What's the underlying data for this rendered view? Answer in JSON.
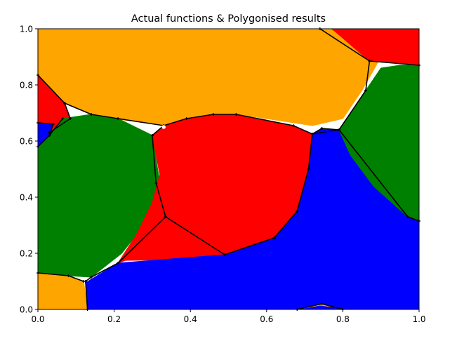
{
  "chart_data": {
    "type": "scatter",
    "title": "Actual functions & Polygonised results",
    "xlabel": "",
    "ylabel": "",
    "xlim": [
      0,
      1
    ],
    "ylim": [
      0,
      1
    ],
    "grid": false,
    "x_ticks": [
      "0.0",
      "0.2",
      "0.4",
      "0.6",
      "0.8",
      "1.0"
    ],
    "y_ticks": [
      "0.0",
      "0.2",
      "0.4",
      "0.6",
      "0.8",
      "1.0"
    ],
    "colors": {
      "orange": "#ffa500",
      "red": "#ff0000",
      "green": "#008000",
      "blue": "#0000ff",
      "edge": "#000000",
      "marker": "#ffffff"
    },
    "regions": [
      {
        "name": "orange-top",
        "color": "orange",
        "points": [
          [
            0,
            1
          ],
          [
            0.86,
            1
          ],
          [
            0.9,
            0.9
          ],
          [
            0.85,
            0.78
          ],
          [
            0.8,
            0.68
          ],
          [
            0.72,
            0.655
          ],
          [
            0.55,
            0.69
          ],
          [
            0.42,
            0.68
          ],
          [
            0.33,
            0.655
          ],
          [
            0.2,
            0.68
          ],
          [
            0.14,
            0.695
          ],
          [
            0.07,
            0.735
          ],
          [
            0,
            0.835
          ]
        ]
      },
      {
        "name": "red-top-right",
        "color": "red",
        "points": [
          [
            0.77,
            1
          ],
          [
            1,
            1
          ],
          [
            1,
            0.87
          ],
          [
            0.87,
            0.885
          ],
          [
            0.78,
            0.99
          ]
        ]
      },
      {
        "name": "red-left",
        "color": "red",
        "points": [
          [
            0,
            0.835
          ],
          [
            0.07,
            0.735
          ],
          [
            0.085,
            0.68
          ],
          [
            0.03,
            0.63
          ],
          [
            0,
            0.665
          ]
        ]
      },
      {
        "name": "blue-left",
        "color": "blue",
        "points": [
          [
            0,
            0.665
          ],
          [
            0.04,
            0.66
          ],
          [
            0.03,
            0.62
          ],
          [
            0,
            0.58
          ]
        ]
      },
      {
        "name": "green-left",
        "color": "green",
        "points": [
          [
            0,
            0.58
          ],
          [
            0.03,
            0.62
          ],
          [
            0.065,
            0.68
          ],
          [
            0.14,
            0.695
          ],
          [
            0.21,
            0.68
          ],
          [
            0.3,
            0.62
          ],
          [
            0.32,
            0.45
          ],
          [
            0.29,
            0.32
          ],
          [
            0.22,
            0.2
          ],
          [
            0.14,
            0.115
          ],
          [
            0.08,
            0.12
          ],
          [
            0,
            0.13
          ]
        ]
      },
      {
        "name": "red-center",
        "color": "red",
        "points": [
          [
            0.3,
            0.62
          ],
          [
            0.33,
            0.655
          ],
          [
            0.39,
            0.68
          ],
          [
            0.46,
            0.695
          ],
          [
            0.52,
            0.695
          ],
          [
            0.67,
            0.655
          ],
          [
            0.72,
            0.625
          ],
          [
            0.71,
            0.5
          ],
          [
            0.68,
            0.35
          ],
          [
            0.62,
            0.255
          ],
          [
            0.49,
            0.195
          ],
          [
            0.38,
            0.177
          ],
          [
            0.23,
            0.175
          ],
          [
            0.21,
            0.165
          ],
          [
            0.26,
            0.27
          ],
          [
            0.3,
            0.38
          ],
          [
            0.32,
            0.48
          ]
        ]
      },
      {
        "name": "blue-bottom",
        "color": "blue",
        "points": [
          [
            0.72,
            0.625
          ],
          [
            0.745,
            0.645
          ],
          [
            0.79,
            0.64
          ],
          [
            0.82,
            0.55
          ],
          [
            0.88,
            0.44
          ],
          [
            0.97,
            0.33
          ],
          [
            1,
            0.315
          ],
          [
            1,
            0
          ],
          [
            0.13,
            0
          ],
          [
            0.125,
            0.095
          ],
          [
            0.21,
            0.165
          ],
          [
            0.49,
            0.195
          ],
          [
            0.62,
            0.255
          ],
          [
            0.68,
            0.35
          ],
          [
            0.71,
            0.5
          ]
        ]
      },
      {
        "name": "green-right",
        "color": "green",
        "points": [
          [
            0.79,
            0.64
          ],
          [
            0.86,
            0.78
          ],
          [
            0.9,
            0.86
          ],
          [
            0.95,
            0.87
          ],
          [
            1,
            0.87
          ],
          [
            1,
            0.315
          ],
          [
            0.97,
            0.33
          ],
          [
            0.88,
            0.44
          ],
          [
            0.82,
            0.55
          ]
        ]
      },
      {
        "name": "orange-bottom-left",
        "color": "orange",
        "points": [
          [
            0,
            0.13
          ],
          [
            0.08,
            0.12
          ],
          [
            0.12,
            0.1
          ],
          [
            0.13,
            0
          ],
          [
            0,
            0
          ]
        ]
      },
      {
        "name": "orange-bottom-center",
        "color": "orange",
        "points": [
          [
            0.68,
            0
          ],
          [
            0.745,
            0.02
          ],
          [
            0.8,
            0
          ],
          [
            0.78,
            0.008
          ],
          [
            0.74,
            0.015
          ]
        ]
      }
    ],
    "polylines": [
      [
        [
          0,
          0.835
        ],
        [
          0.07,
          0.735
        ],
        [
          0.14,
          0.695
        ],
        [
          0.21,
          0.68
        ],
        [
          0.33,
          0.655
        ]
      ],
      [
        [
          0.07,
          0.735
        ],
        [
          0.085,
          0.68
        ],
        [
          0.03,
          0.63
        ]
      ],
      [
        [
          0,
          0.665
        ],
        [
          0.04,
          0.66
        ],
        [
          0.03,
          0.62
        ],
        [
          0,
          0.58
        ]
      ],
      [
        [
          0.03,
          0.62
        ],
        [
          0.065,
          0.68
        ]
      ],
      [
        [
          0.33,
          0.655
        ],
        [
          0.39,
          0.68
        ],
        [
          0.46,
          0.695
        ],
        [
          0.52,
          0.695
        ],
        [
          0.67,
          0.655
        ],
        [
          0.72,
          0.625
        ],
        [
          0.79,
          0.64
        ],
        [
          0.86,
          0.78
        ]
      ],
      [
        [
          0.3,
          0.62
        ],
        [
          0.33,
          0.655
        ]
      ],
      [
        [
          0.3,
          0.62
        ],
        [
          0.31,
          0.45
        ],
        [
          0.335,
          0.33
        ],
        [
          0.49,
          0.195
        ],
        [
          0.62,
          0.255
        ],
        [
          0.68,
          0.35
        ],
        [
          0.71,
          0.5
        ],
        [
          0.72,
          0.625
        ]
      ],
      [
        [
          0.335,
          0.33
        ],
        [
          0.21,
          0.165
        ],
        [
          0.14,
          0.115
        ],
        [
          0.125,
          0.1
        ],
        [
          0.13,
          0
        ]
      ],
      [
        [
          0,
          0.13
        ],
        [
          0.08,
          0.12
        ],
        [
          0.12,
          0.1
        ]
      ],
      [
        [
          0.745,
          0.645
        ],
        [
          0.79,
          0.64
        ]
      ],
      [
        [
          0.79,
          0.64
        ],
        [
          0.97,
          0.33
        ],
        [
          1,
          0.315
        ]
      ],
      [
        [
          0.72,
          0.625
        ],
        [
          0.745,
          0.645
        ]
      ],
      [
        [
          0.74,
          1
        ],
        [
          0.87,
          0.885
        ],
        [
          1,
          0.87
        ]
      ],
      [
        [
          0.87,
          0.885
        ],
        [
          0.86,
          0.78
        ]
      ],
      [
        [
          0.68,
          0
        ],
        [
          0.745,
          0.02
        ],
        [
          0.8,
          0
        ]
      ]
    ],
    "highlight_point": [
      0.33,
      0.65
    ]
  }
}
